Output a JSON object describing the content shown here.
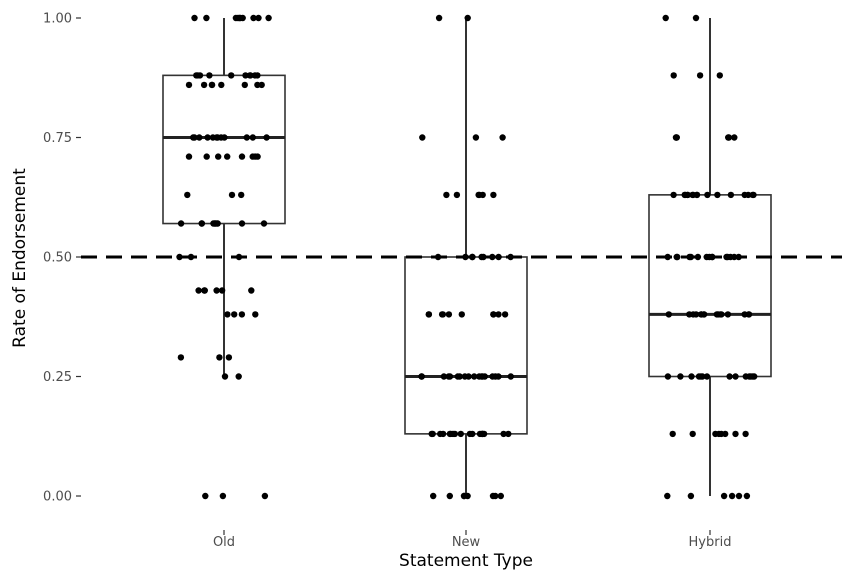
{
  "chart_data": {
    "type": "box",
    "xlabel": "Statement Type",
    "ylabel": "Rate of Endorsement",
    "categories": [
      "Old",
      "New",
      "Hybrid"
    ],
    "ylim": [
      0,
      1
    ],
    "yticks": [
      0,
      0.25,
      0.5,
      0.75,
      1
    ],
    "ytick_labels": [
      "0.00",
      "0.25",
      "0.50",
      "0.75",
      "1.00"
    ],
    "reference_line": {
      "y": 0.5,
      "style": "dashed"
    },
    "grid": false,
    "boxes": [
      {
        "category": "Old",
        "whisker_low": 0.25,
        "q1": 0.57,
        "median": 0.75,
        "q3": 0.88,
        "whisker_high": 1.0
      },
      {
        "category": "New",
        "whisker_low": 0.0,
        "q1": 0.13,
        "median": 0.25,
        "q3": 0.5,
        "whisker_high": 1.0
      },
      {
        "category": "Hybrid",
        "whisker_low": 0.0,
        "q1": 0.25,
        "median": 0.38,
        "q3": 0.63,
        "whisker_high": 1.0
      }
    ],
    "points": [
      {
        "category": "Old",
        "values": [
          1,
          1,
          1,
          1,
          1,
          1,
          1,
          1,
          1,
          1,
          0.88,
          0.88,
          0.88,
          0.88,
          0.88,
          0.88,
          0.88,
          0.88,
          0.88,
          0.88,
          0.86,
          0.86,
          0.86,
          0.86,
          0.86,
          0.86,
          0.86,
          0.86,
          0.75,
          0.75,
          0.75,
          0.75,
          0.75,
          0.75,
          0.75,
          0.75,
          0.75,
          0.75,
          0.75,
          0.75,
          0.71,
          0.71,
          0.71,
          0.71,
          0.71,
          0.71,
          0.71,
          0.71,
          0.63,
          0.63,
          0.63,
          0.57,
          0.57,
          0.57,
          0.57,
          0.57,
          0.57,
          0.57,
          0.57,
          0.57,
          0.57,
          0.5,
          0.5,
          0.5,
          0.43,
          0.43,
          0.43,
          0.43,
          0.43,
          0.43,
          0.38,
          0.38,
          0.38,
          0.38,
          0.29,
          0.29,
          0.29,
          0.25,
          0.25,
          0,
          0,
          0
        ]
      },
      {
        "category": "New",
        "values": [
          1,
          1,
          0.75,
          0.75,
          0.75,
          0.63,
          0.63,
          0.63,
          0.63,
          0.63,
          0.63,
          0.5,
          0.5,
          0.5,
          0.5,
          0.5,
          0.5,
          0.5,
          0.5,
          0.5,
          0.38,
          0.38,
          0.38,
          0.38,
          0.38,
          0.38,
          0.38,
          0.38,
          0.38,
          0.38,
          0.25,
          0.25,
          0.25,
          0.25,
          0.25,
          0.25,
          0.25,
          0.25,
          0.25,
          0.25,
          0.25,
          0.25,
          0.25,
          0.25,
          0.25,
          0.25,
          0.25,
          0.25,
          0.13,
          0.13,
          0.13,
          0.13,
          0.13,
          0.13,
          0.13,
          0.13,
          0.13,
          0.13,
          0.13,
          0.13,
          0.13,
          0.13,
          0.13,
          0.13,
          0.13,
          0.13,
          0,
          0,
          0,
          0,
          0,
          0,
          0,
          0
        ]
      },
      {
        "category": "Hybrid",
        "values": [
          1,
          1,
          0.88,
          0.88,
          0.88,
          0.75,
          0.75,
          0.75,
          0.75,
          0.75,
          0.75,
          0.63,
          0.63,
          0.63,
          0.63,
          0.63,
          0.63,
          0.63,
          0.63,
          0.63,
          0.63,
          0.63,
          0.63,
          0.63,
          0.63,
          0.63,
          0.63,
          0.5,
          0.5,
          0.5,
          0.5,
          0.5,
          0.5,
          0.5,
          0.5,
          0.5,
          0.5,
          0.5,
          0.5,
          0.5,
          0.5,
          0.5,
          0.38,
          0.38,
          0.38,
          0.38,
          0.38,
          0.38,
          0.38,
          0.38,
          0.38,
          0.38,
          0.38,
          0.38,
          0.38,
          0.38,
          0.38,
          0.38,
          0.25,
          0.25,
          0.25,
          0.25,
          0.25,
          0.25,
          0.25,
          0.25,
          0.25,
          0.25,
          0.25,
          0.25,
          0.25,
          0.25,
          0.13,
          0.13,
          0.13,
          0.13,
          0.13,
          0.13,
          0.13,
          0.13,
          0,
          0,
          0,
          0,
          0,
          0
        ]
      }
    ]
  }
}
